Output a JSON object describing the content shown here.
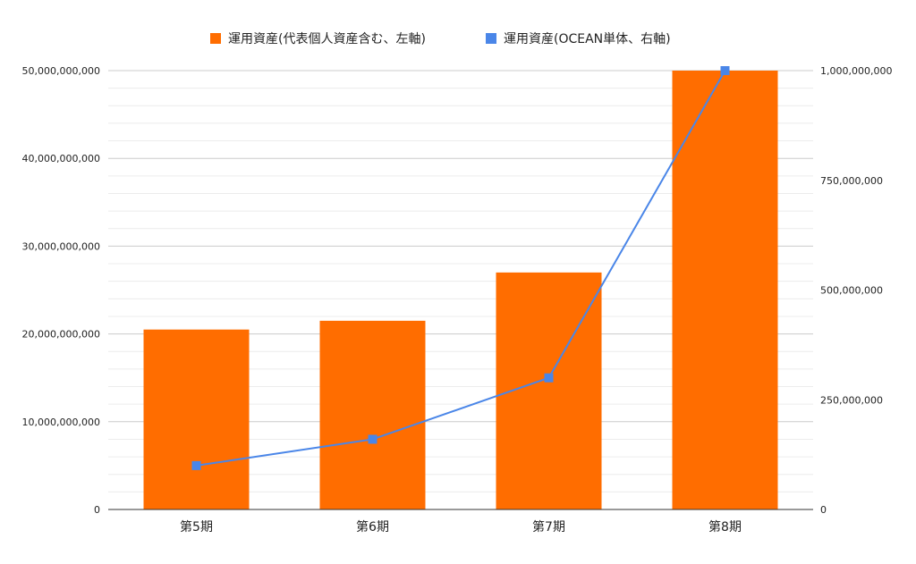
{
  "chart_data": {
    "type": "bar",
    "categories": [
      "第5期",
      "第6期",
      "第7期",
      "第8期"
    ],
    "series": [
      {
        "name": "運用資産(代表個人資産含む、左軸)",
        "chart": "bar",
        "axis": "left",
        "color": "#ff6d00",
        "values": [
          20500000000,
          21500000000,
          27000000000,
          50000000000
        ]
      },
      {
        "name": "運用資産(OCEAN単体、右軸)",
        "chart": "line",
        "axis": "right",
        "color": "#4a86e8",
        "values": [
          100000000,
          160000000,
          300000000,
          1000000000
        ]
      }
    ],
    "ylim": [
      0,
      50000000000
    ],
    "y2lim": [
      0,
      1000000000
    ],
    "y_ticks": [
      "0",
      "10,000,000,000",
      "20,000,000,000",
      "30,000,000,000",
      "40,000,000,000",
      "50,000,000,000"
    ],
    "y2_ticks": [
      "0",
      "250,000,000",
      "500,000,000",
      "750,000,000",
      "1,000,000,000"
    ],
    "legend_position": "top",
    "grid": true
  }
}
